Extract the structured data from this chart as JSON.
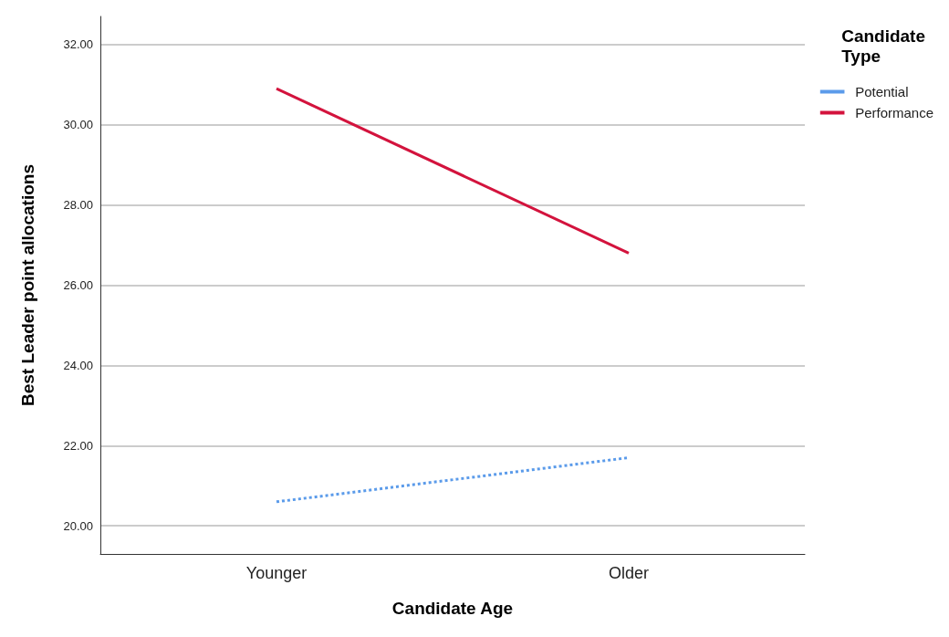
{
  "chart_data": {
    "type": "line",
    "xlabel": "Candidate Age",
    "ylabel": "Best Leader point allocations",
    "legend_title": "Candidate Type",
    "categories": [
      "Younger",
      "Older"
    ],
    "series": [
      {
        "name": "Potential",
        "color": "#5b9bea",
        "values": [
          20.6,
          21.7
        ],
        "line_style": "dotted"
      },
      {
        "name": "Performance",
        "color": "#d3133d",
        "values": [
          30.9,
          26.8
        ],
        "line_style": "solid"
      }
    ],
    "ylim": [
      19.3,
      32.7
    ],
    "yticks": [
      {
        "value": 20,
        "label": "20.00"
      },
      {
        "value": 22,
        "label": "22.00"
      },
      {
        "value": 24,
        "label": "24.00"
      },
      {
        "value": 26,
        "label": "26.00"
      },
      {
        "value": 28,
        "label": "28.00"
      },
      {
        "value": 30,
        "label": "30.00"
      },
      {
        "value": 32,
        "label": "32.00"
      }
    ],
    "grid": "y",
    "legend": "top right",
    "marker": "none"
  }
}
